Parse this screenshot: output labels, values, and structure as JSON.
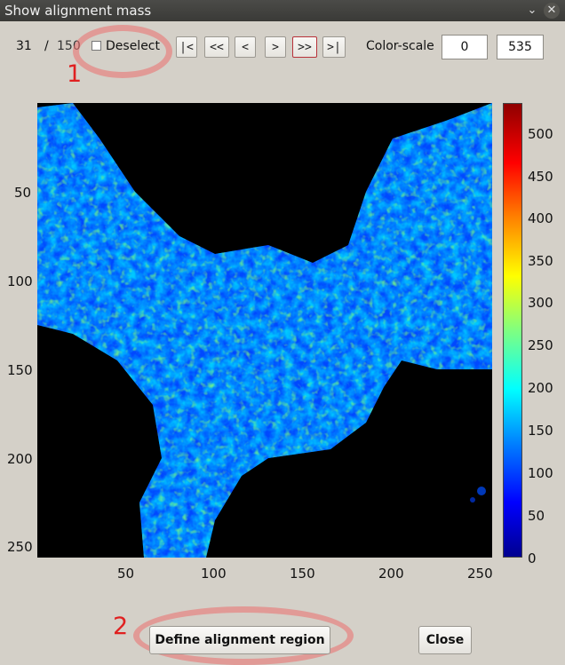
{
  "window": {
    "title": "Show alignment mass"
  },
  "toolbar": {
    "current_index": "31",
    "separator": "/",
    "total": "150",
    "deselect_label": "Deselect",
    "nav": {
      "first": "|<",
      "prev_fast": "<<",
      "prev": "<",
      "next": ">",
      "next_fast": ">>",
      "last": ">|"
    },
    "color_scale_label": "Color-scale",
    "color_min": "0",
    "color_max": "535"
  },
  "plot": {
    "y_ticks": [
      "50",
      "100",
      "150",
      "200",
      "250"
    ],
    "x_ticks": [
      "50",
      "100",
      "150",
      "200",
      "250"
    ],
    "colorbar_ticks": [
      "500",
      "450",
      "400",
      "350",
      "300",
      "250",
      "200",
      "150",
      "100",
      "50",
      "0"
    ],
    "colormap": "jet",
    "axis_range": [
      1,
      256
    ],
    "color_range": [
      0,
      535
    ]
  },
  "annotations": {
    "mark1": "1",
    "mark2": "2",
    "color": "#e02020"
  },
  "buttons": {
    "define_region": "Define alignment region",
    "close": "Close"
  }
}
